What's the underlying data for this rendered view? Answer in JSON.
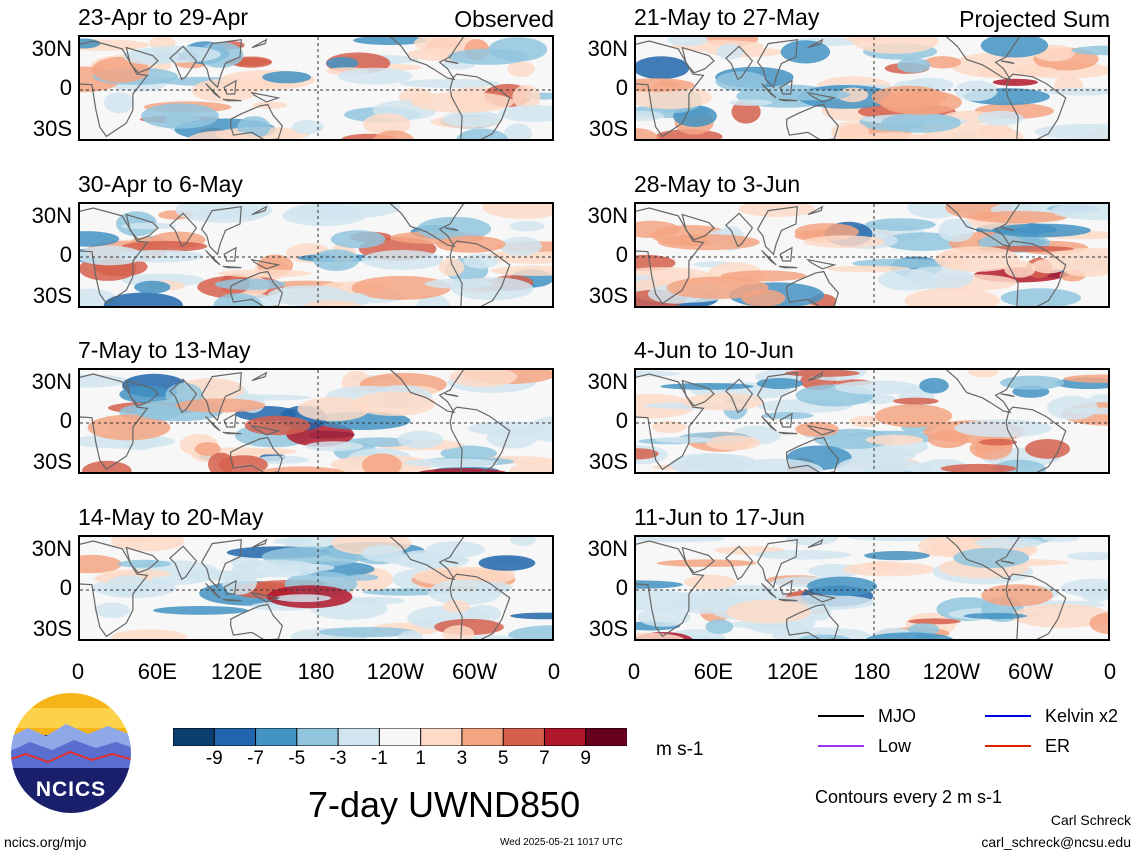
{
  "panels": {
    "observed_label": "Observed",
    "projected_label": "Projected Sum",
    "left": [
      {
        "title": "23-Apr to 29-Apr"
      },
      {
        "title": "30-Apr to 6-May"
      },
      {
        "title": "7-May to 13-May"
      },
      {
        "title": "14-May to 20-May"
      }
    ],
    "right": [
      {
        "title": "21-May to 27-May"
      },
      {
        "title": "28-May to 3-Jun"
      },
      {
        "title": "4-Jun to 10-Jun"
      },
      {
        "title": "11-Jun to 17-Jun"
      }
    ]
  },
  "axes": {
    "lat_labels": [
      "30N",
      "0",
      "30S"
    ],
    "lon_labels": [
      "0",
      "60E",
      "120E",
      "180",
      "120W",
      "60W",
      "0"
    ]
  },
  "colorbar": {
    "colors": [
      "#0b3d6e",
      "#2166ac",
      "#4393c3",
      "#92c5de",
      "#d1e5f0",
      "#f7f7f7",
      "#fddbc7",
      "#f4a582",
      "#d6604d",
      "#b2182b",
      "#67001f"
    ],
    "labels": [
      "-9",
      "-7",
      "-5",
      "-3",
      "-1",
      "1",
      "3",
      "5",
      "7",
      "9"
    ],
    "units": "m s-1"
  },
  "legend": {
    "items": [
      {
        "label": "MJO",
        "color": "#000000"
      },
      {
        "label": "Kelvin x2",
        "color": "#0000dd"
      },
      {
        "label": "Low",
        "color": "#9933ee"
      },
      {
        "label": "ER",
        "color": "#dd2200"
      }
    ],
    "contours": "Contours every 2 m s-1"
  },
  "footer": {
    "main_title": "7-day UWND850",
    "logo_text": "NCICS",
    "url": "ncics.org/mjo",
    "timestamp": "Wed 2025-05-21 1017 UTC",
    "author": "Carl Schreck",
    "email": "carl_schreck@ncsu.edu"
  }
}
